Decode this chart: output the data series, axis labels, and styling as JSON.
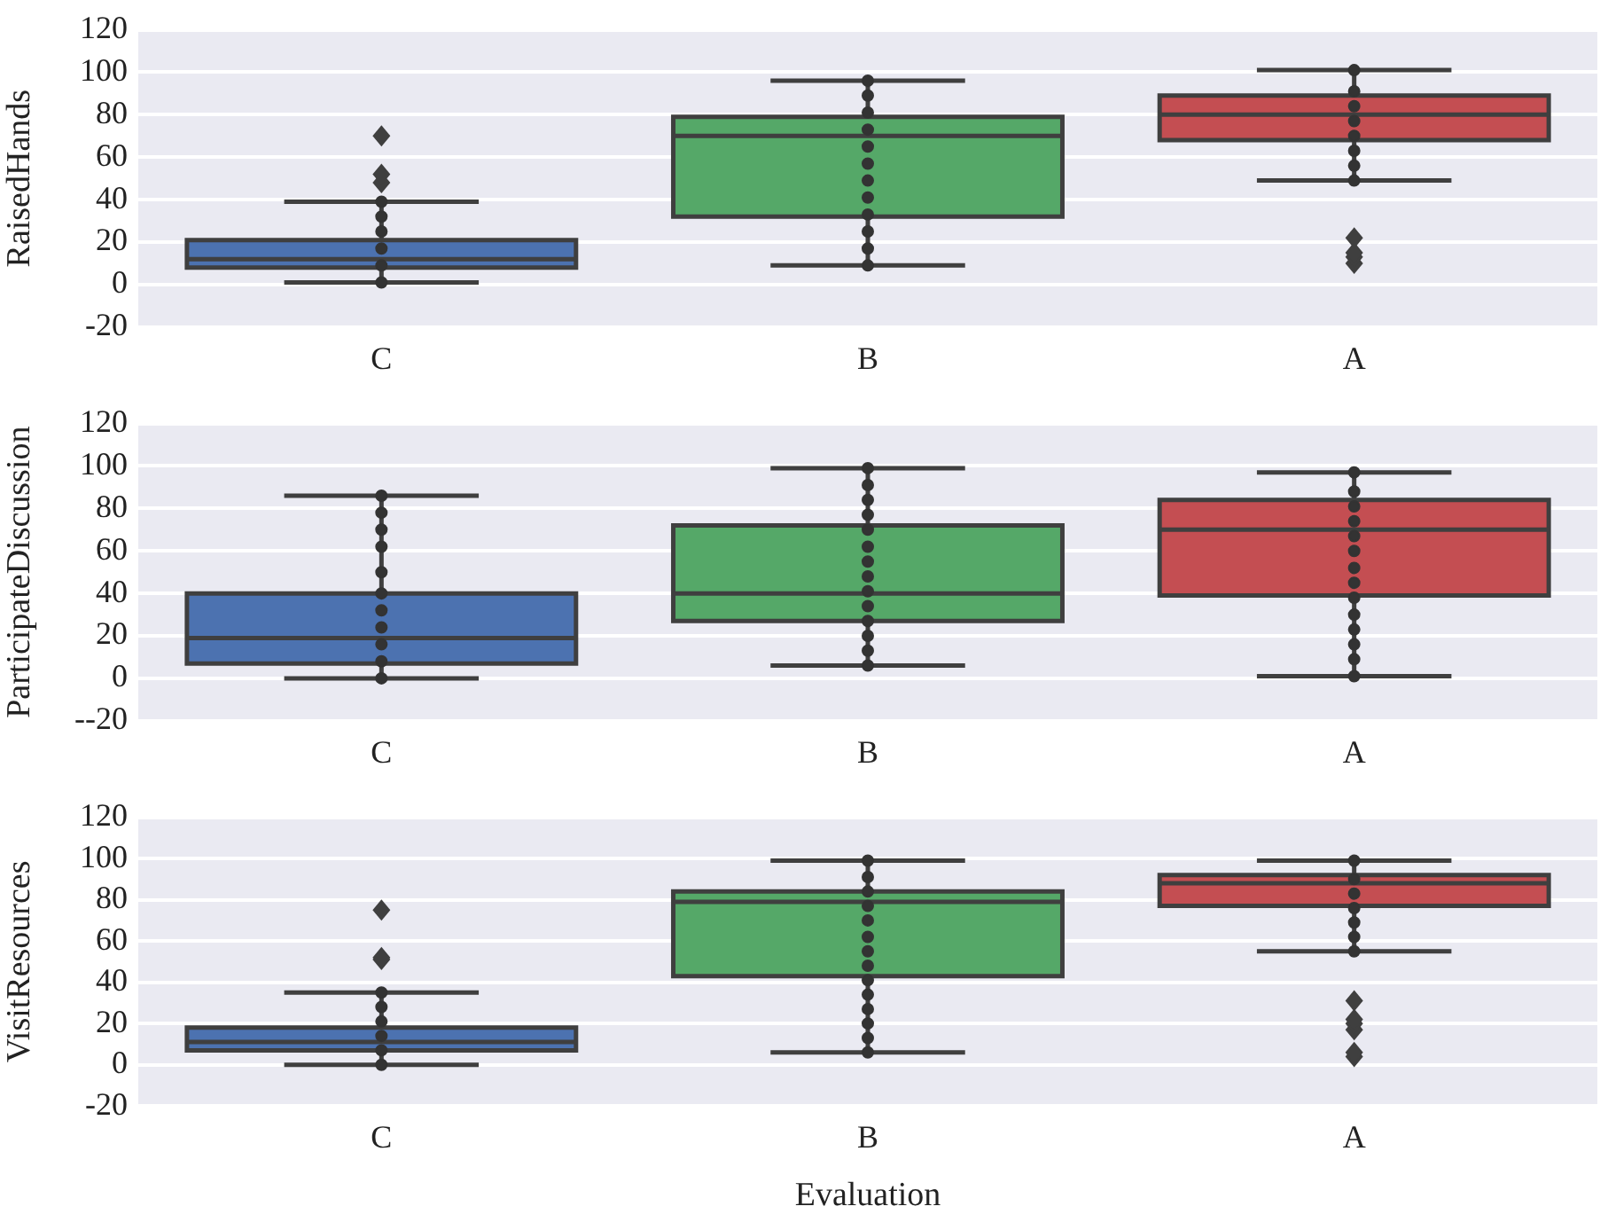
{
  "chart_data": [
    {
      "type": "box",
      "categories": [
        "C",
        "B",
        "A"
      ],
      "ylabel": "RaisedHands",
      "ylim": [
        -20,
        120
      ],
      "yticks": [
        -20,
        0,
        20,
        40,
        60,
        80,
        100,
        120
      ],
      "grid": "y",
      "colors": [
        "#4c72b0",
        "#55a868",
        "#c44e52"
      ],
      "marker": "circle",
      "boxes": [
        {
          "low": 1,
          "q1": 8,
          "median": 12,
          "q3": 21,
          "high": 39,
          "outliers": [
            48,
            52,
            70
          ]
        },
        {
          "low": 9,
          "q1": 32,
          "median": 70,
          "q3": 79,
          "high": 96
        },
        {
          "low": 49,
          "q1": 68,
          "median": 80,
          "q3": 89,
          "high": 101,
          "outliers": [
            10,
            13,
            15,
            22
          ]
        }
      ],
      "series": [
        {
          "type": "scatter",
          "color": "#333333",
          "x": [
            "C",
            "C",
            "C",
            "C",
            "C",
            "C",
            "B",
            "B",
            "B",
            "B",
            "B",
            "B",
            "B",
            "B",
            "B",
            "B",
            "B",
            "B",
            "A",
            "A",
            "A",
            "A",
            "A",
            "A",
            "A",
            "A"
          ],
          "values": [
            1,
            9,
            17,
            25,
            32,
            39,
            9,
            17,
            25,
            33,
            41,
            49,
            57,
            65,
            73,
            81,
            89,
            96,
            49,
            56,
            63,
            70,
            77,
            84,
            91,
            101
          ]
        }
      ]
    },
    {
      "type": "box",
      "categories": [
        "C",
        "B",
        "A"
      ],
      "ylabel": "ParticipateDiscussion",
      "ylim": [
        -20,
        120
      ],
      "yticks": [
        {
          "value": -20,
          "label": "--20"
        },
        0,
        20,
        40,
        60,
        80,
        100,
        120
      ],
      "grid": "y",
      "colors": [
        "#4c72b0",
        "#55a868",
        "#c44e52"
      ],
      "marker": "circle",
      "boxes": [
        {
          "low": 0,
          "q1": 7,
          "median": 19,
          "q3": 40,
          "high": 86
        },
        {
          "low": 6,
          "q1": 27,
          "median": 40,
          "q3": 72,
          "high": 99
        },
        {
          "low": 1,
          "q1": 39,
          "median": 70,
          "q3": 84,
          "high": 97
        }
      ],
      "series": [
        {
          "type": "scatter",
          "color": "#333333",
          "x": [
            "C",
            "C",
            "C",
            "C",
            "C",
            "C",
            "C",
            "C",
            "C",
            "C",
            "C",
            "B",
            "B",
            "B",
            "B",
            "B",
            "B",
            "B",
            "B",
            "B",
            "B",
            "B",
            "B",
            "B",
            "B",
            "A",
            "A",
            "A",
            "A",
            "A",
            "A",
            "A",
            "A",
            "A",
            "A",
            "A",
            "A",
            "A",
            "A"
          ],
          "values": [
            0,
            8,
            16,
            24,
            32,
            40,
            50,
            62,
            70,
            78,
            86,
            6,
            13,
            20,
            27,
            34,
            41,
            48,
            55,
            62,
            70,
            77,
            84,
            91,
            99,
            1,
            9,
            16,
            23,
            30,
            38,
            45,
            52,
            60,
            67,
            74,
            81,
            88,
            97
          ]
        }
      ]
    },
    {
      "type": "box",
      "categories": [
        "C",
        "B",
        "A"
      ],
      "xlabel": "Evaluation",
      "ylabel": "VisitResources",
      "ylim": [
        -20,
        120
      ],
      "yticks": [
        -20,
        0,
        20,
        40,
        60,
        80,
        100,
        120
      ],
      "grid": "y",
      "colors": [
        "#4c72b0",
        "#55a868",
        "#c44e52"
      ],
      "marker": "circle",
      "boxes": [
        {
          "low": 0,
          "q1": 7,
          "median": 11,
          "q3": 18,
          "high": 35,
          "outliers": [
            51,
            52,
            75
          ]
        },
        {
          "low": 6,
          "q1": 43,
          "median": 79,
          "q3": 84,
          "high": 99
        },
        {
          "low": 55,
          "q1": 77,
          "median": 88,
          "q3": 92,
          "high": 99,
          "outliers": [
            4,
            6,
            17,
            20,
            22,
            31
          ]
        }
      ],
      "series": [
        {
          "type": "scatter",
          "color": "#333333",
          "x": [
            "C",
            "C",
            "C",
            "C",
            "C",
            "C",
            "B",
            "B",
            "B",
            "B",
            "B",
            "B",
            "B",
            "B",
            "B",
            "B",
            "B",
            "B",
            "B",
            "B",
            "A",
            "A",
            "A",
            "A",
            "A",
            "A",
            "A"
          ],
          "values": [
            0,
            7,
            14,
            21,
            28,
            35,
            6,
            13,
            20,
            27,
            34,
            41,
            48,
            55,
            62,
            70,
            77,
            84,
            91,
            99,
            55,
            62,
            69,
            76,
            83,
            90,
            99
          ]
        }
      ]
    }
  ]
}
